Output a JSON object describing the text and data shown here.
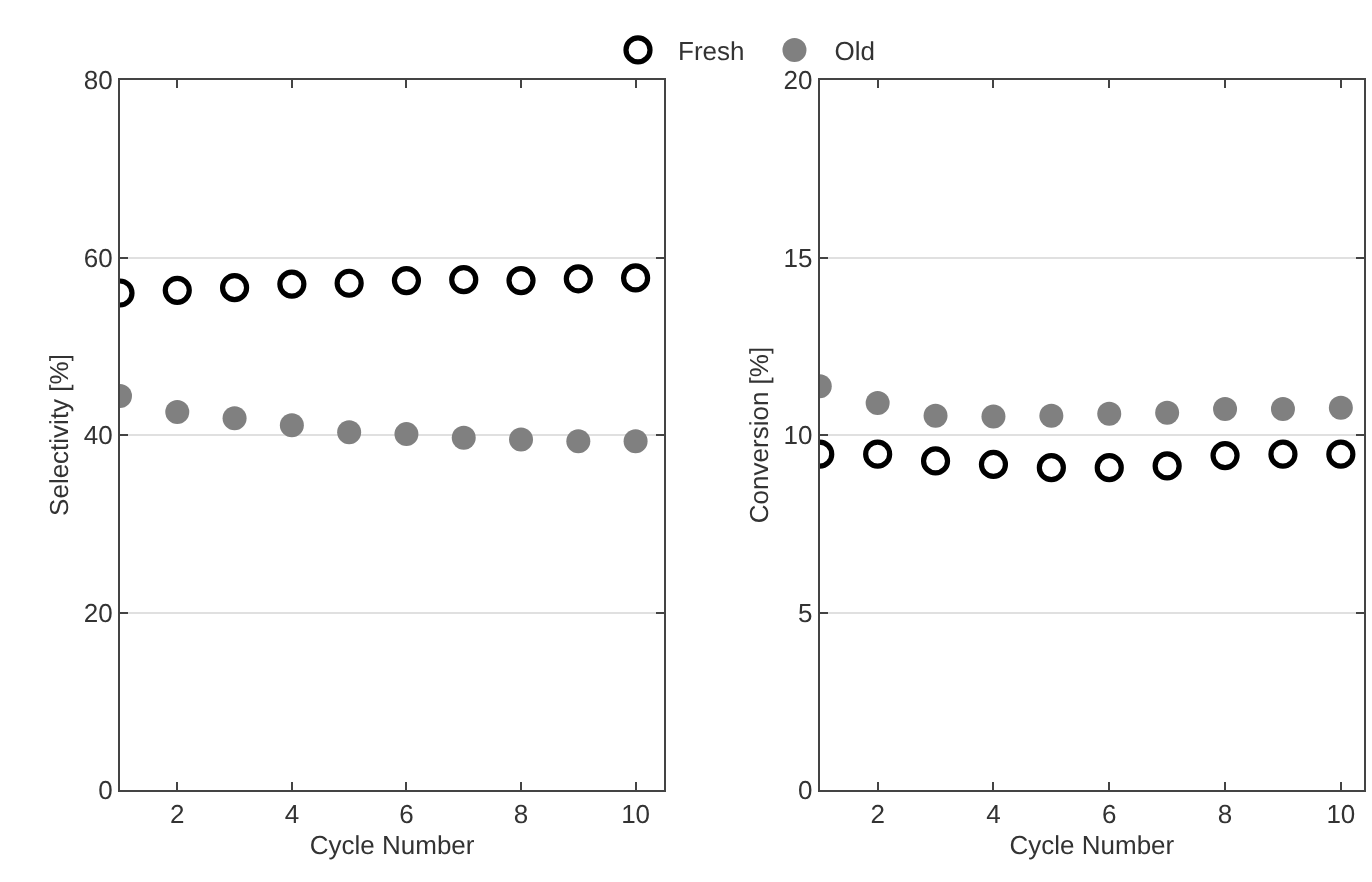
{
  "chart_data": [
    {
      "type": "scatter",
      "ylabel": "Selectivity [%]",
      "xlabel": "Cycle Number",
      "x": [
        1,
        2,
        3,
        4,
        5,
        6,
        7,
        8,
        9,
        10
      ],
      "series": [
        {
          "name": "Fresh",
          "color": "#000000",
          "marker": "circle-open",
          "values": [
            56.0,
            56.3,
            56.6,
            57.0,
            57.1,
            57.4,
            57.5,
            57.4,
            57.6,
            57.7
          ]
        },
        {
          "name": "Old",
          "color": "#808080",
          "marker": "circle",
          "values": [
            44.4,
            42.6,
            41.9,
            41.1,
            40.3,
            40.1,
            39.7,
            39.5,
            39.3,
            39.3
          ]
        }
      ],
      "xlim": [
        1,
        10.5
      ],
      "xticks": [
        2,
        4,
        6,
        8,
        10
      ],
      "ylim": [
        0,
        80
      ],
      "yticks": [
        0,
        20,
        40,
        60,
        80
      ],
      "grid": "y",
      "legend": "top"
    },
    {
      "type": "scatter",
      "ylabel": "Conversion [%]",
      "xlabel": "Cycle Number",
      "x": [
        1,
        2,
        3,
        4,
        5,
        6,
        7,
        8,
        9,
        10
      ],
      "series": [
        {
          "color": "#000000",
          "marker": "circle-open",
          "values": [
            9.46,
            9.46,
            9.27,
            9.17,
            9.08,
            9.08,
            9.13,
            9.42,
            9.46,
            9.46
          ]
        },
        {
          "color": "#808080",
          "marker": "circle",
          "values": [
            11.37,
            10.9,
            10.54,
            10.52,
            10.54,
            10.6,
            10.63,
            10.73,
            10.73,
            10.77
          ]
        }
      ],
      "xlim": [
        1,
        10.4
      ],
      "xticks": [
        2,
        4,
        6,
        8,
        10
      ],
      "ylim": [
        0,
        20
      ],
      "yticks": [
        0,
        5,
        10,
        15,
        20
      ],
      "grid": "y"
    }
  ]
}
